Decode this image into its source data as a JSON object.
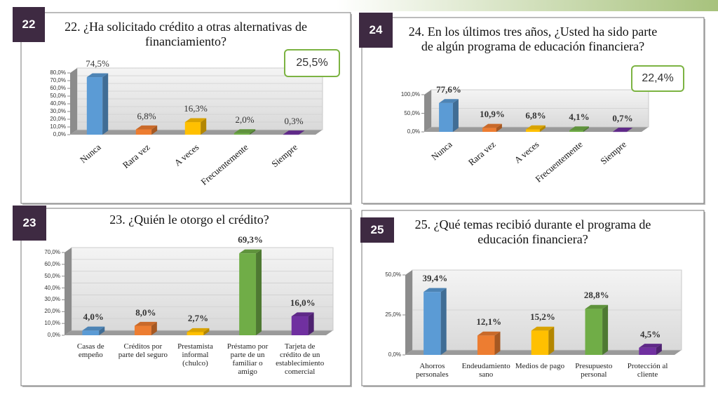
{
  "chart_data": [
    {
      "type": "bar",
      "badge": "22",
      "title": "22. ¿Ha solicitado crédito a otras alternativas de financiamiento?",
      "annotation": "25,5%",
      "categories": [
        "Nunca",
        "Rara vez",
        "A veces",
        "Frecuentemente",
        "Siempre"
      ],
      "values": [
        74.5,
        6.8,
        16.3,
        2.0,
        0.3
      ],
      "value_labels": [
        "74,5%",
        "6,8%",
        "16,3%",
        "2,0%",
        "0,3%"
      ],
      "colors": [
        "#5b9bd5",
        "#ed7d31",
        "#ffc000",
        "#70ad47",
        "#7030a0"
      ],
      "ylim": [
        0,
        80
      ],
      "yticks": [
        {
          "value": 0,
          "label": "0,0%"
        },
        {
          "value": 10,
          "label": "10,0%"
        },
        {
          "value": 20,
          "label": "20,0%"
        },
        {
          "value": 30,
          "label": "30,0%"
        },
        {
          "value": 40,
          "label": "40,0%"
        },
        {
          "value": 50,
          "label": "50,0%"
        },
        {
          "value": 60,
          "label": "60,0%"
        },
        {
          "value": 70,
          "label": "70,0%"
        },
        {
          "value": 80,
          "label": "80,0%"
        }
      ],
      "grid": true
    },
    {
      "type": "bar",
      "badge": "24",
      "title": "24. En los últimos tres años, ¿Usted ha sido parte de algún programa de educación financiera?",
      "annotation": "22,4%",
      "categories": [
        "Nunca",
        "Rara vez",
        "A veces",
        "Frecuentemente",
        "Siempre"
      ],
      "values": [
        77.6,
        10.9,
        6.8,
        4.1,
        0.7
      ],
      "value_labels": [
        "77,6%",
        "10,9%",
        "6,8%",
        "4,1%",
        "0,7%"
      ],
      "colors": [
        "#5b9bd5",
        "#ed7d31",
        "#ffc000",
        "#70ad47",
        "#7030a0"
      ],
      "ylim": [
        0,
        100
      ],
      "yticks": [
        {
          "value": 0,
          "label": "0,0%"
        },
        {
          "value": 50,
          "label": "50,0%"
        },
        {
          "value": 100,
          "label": "100,0%"
        }
      ],
      "grid": true
    },
    {
      "type": "bar",
      "badge": "23",
      "title": "23. ¿Quién le otorgo el crédito?",
      "categories": [
        "Casas de empeño",
        "Créditos por parte del seguro",
        "Prestamista informal (chulco)",
        "Préstamo por parte de un familiar o amigo",
        "Tarjeta de crédito de un establecimiento comercial"
      ],
      "values": [
        4.0,
        8.0,
        2.7,
        69.3,
        16.0
      ],
      "value_labels": [
        "4,0%",
        "8,0%",
        "2,7%",
        "69,3%",
        "16,0%"
      ],
      "colors": [
        "#5b9bd5",
        "#ed7d31",
        "#ffc000",
        "#70ad47",
        "#7030a0"
      ],
      "ylim": [
        0,
        70
      ],
      "yticks": [
        {
          "value": 0,
          "label": "0,0%"
        },
        {
          "value": 10,
          "label": "10,0%"
        },
        {
          "value": 20,
          "label": "20,0%"
        },
        {
          "value": 30,
          "label": "30,0%"
        },
        {
          "value": 40,
          "label": "40,0%"
        },
        {
          "value": 50,
          "label": "50,0%"
        },
        {
          "value": 60,
          "label": "60,0%"
        },
        {
          "value": 70,
          "label": "70,0%"
        }
      ],
      "grid": true
    },
    {
      "type": "bar",
      "badge": "25",
      "title": "25. ¿Qué temas recibió durante el programa de educación financiera?",
      "categories": [
        "Ahorros personales",
        "Endeudamiento sano",
        "Medios de pago",
        "Presupuesto personal",
        "Protección al cliente"
      ],
      "values": [
        39.4,
        12.1,
        15.2,
        28.8,
        4.5
      ],
      "value_labels": [
        "39,4%",
        "12,1%",
        "15,2%",
        "28,8%",
        "4,5%"
      ],
      "colors": [
        "#5b9bd5",
        "#ed7d31",
        "#ffc000",
        "#70ad47",
        "#7030a0"
      ],
      "ylim": [
        0,
        50
      ],
      "yticks": [
        {
          "value": 0,
          "label": "0,0%"
        },
        {
          "value": 25,
          "label": "25,0%"
        },
        {
          "value": 50,
          "label": "50,0%"
        }
      ],
      "grid": true
    }
  ]
}
